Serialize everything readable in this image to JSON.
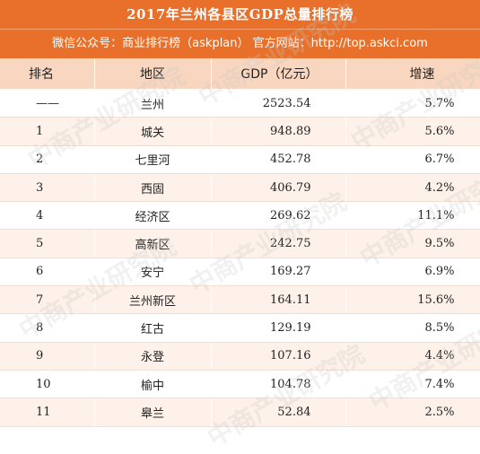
{
  "header": {
    "title": "2017年兰州各县区GDP总量排行榜",
    "subtitle": "微信公众号：商业排行榜（askplan）  官方网站：http://top.askci.com"
  },
  "table": {
    "columns": [
      "排名",
      "地区",
      "GDP（亿元）",
      "增速"
    ],
    "rows": [
      {
        "rank": "——",
        "region": "兰州",
        "gdp": "2523.54",
        "growth": "5.7%"
      },
      {
        "rank": "1",
        "region": "城关",
        "gdp": "948.89",
        "growth": "5.6%"
      },
      {
        "rank": "2",
        "region": "七里河",
        "gdp": "452.78",
        "growth": "6.7%"
      },
      {
        "rank": "3",
        "region": "西固",
        "gdp": "406.79",
        "growth": "4.2%"
      },
      {
        "rank": "4",
        "region": "经济区",
        "gdp": "269.62",
        "growth": "11.1%"
      },
      {
        "rank": "5",
        "region": "高新区",
        "gdp": "242.75",
        "growth": "9.5%"
      },
      {
        "rank": "6",
        "region": "安宁",
        "gdp": "169.27",
        "growth": "6.9%"
      },
      {
        "rank": "7",
        "region": "兰州新区",
        "gdp": "164.11",
        "growth": "15.6%"
      },
      {
        "rank": "8",
        "region": "红古",
        "gdp": "129.19",
        "growth": "8.5%"
      },
      {
        "rank": "9",
        "region": "永登",
        "gdp": "107.16",
        "growth": "4.4%"
      },
      {
        "rank": "10",
        "region": "榆中",
        "gdp": "104.78",
        "growth": "7.4%"
      },
      {
        "rank": "11",
        "region": "皋兰",
        "gdp": "52.84",
        "growth": "2.5%"
      }
    ]
  },
  "watermark": "中商产业研究院",
  "colors": {
    "header_bg": "#e8702a",
    "colhead_bg": "#f9d6bf",
    "stripe": "#fdf1e9"
  }
}
